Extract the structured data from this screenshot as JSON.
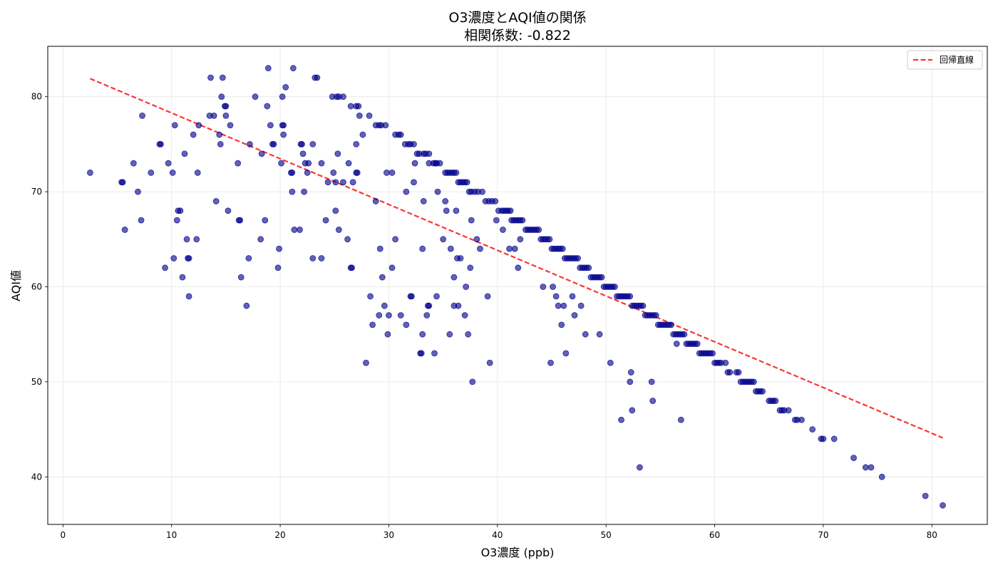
{
  "chart_data": {
    "type": "scatter",
    "title": "O3濃度とAQI値の関係",
    "subtitle": "相関係数: -0.822",
    "xlabel": "O3濃度 (ppb)",
    "ylabel": "AQI値",
    "xlim": [
      -1.4,
      85.1
    ],
    "ylim": [
      35,
      85.3
    ],
    "xticks": [
      0,
      10,
      20,
      30,
      40,
      50,
      60,
      70,
      80
    ],
    "yticks": [
      40,
      50,
      60,
      70,
      80
    ],
    "grid": true,
    "legend_position": "top-right",
    "point_color": "#00008b",
    "regression": {
      "name": "回帰直線",
      "color": "#ff3333",
      "style": "dashed",
      "x": [
        2.5,
        81.0
      ],
      "y": [
        81.9,
        44.1
      ]
    },
    "points": [
      [
        2.5,
        72
      ],
      [
        5.4,
        71
      ],
      [
        5.5,
        71
      ],
      [
        5.7,
        66
      ],
      [
        6.5,
        73
      ],
      [
        6.9,
        70
      ],
      [
        7.2,
        67
      ],
      [
        7.3,
        78
      ],
      [
        8.1,
        72
      ],
      [
        8.9,
        75
      ],
      [
        9.0,
        75
      ],
      [
        9.4,
        62
      ],
      [
        9.7,
        73
      ],
      [
        10.1,
        72
      ],
      [
        10.2,
        63
      ],
      [
        10.3,
        77
      ],
      [
        10.5,
        67
      ],
      [
        10.6,
        68
      ],
      [
        10.8,
        68
      ],
      [
        11.0,
        61
      ],
      [
        11.2,
        74
      ],
      [
        11.4,
        65
      ],
      [
        11.5,
        63
      ],
      [
        11.6,
        63
      ],
      [
        11.6,
        59
      ],
      [
        12.0,
        76
      ],
      [
        12.3,
        65
      ],
      [
        12.4,
        72
      ],
      [
        12.5,
        77
      ],
      [
        13.5,
        78
      ],
      [
        13.6,
        82
      ],
      [
        13.9,
        78
      ],
      [
        14.1,
        69
      ],
      [
        14.4,
        76
      ],
      [
        14.5,
        75
      ],
      [
        14.6,
        80
      ],
      [
        14.7,
        82
      ],
      [
        14.9,
        79
      ],
      [
        15.0,
        79
      ],
      [
        15.0,
        78
      ],
      [
        15.2,
        68
      ],
      [
        15.4,
        77
      ],
      [
        16.1,
        73
      ],
      [
        16.2,
        67
      ],
      [
        16.3,
        67
      ],
      [
        16.4,
        61
      ],
      [
        16.9,
        58
      ],
      [
        17.1,
        63
      ],
      [
        17.2,
        75
      ],
      [
        17.7,
        80
      ],
      [
        18.2,
        65
      ],
      [
        18.3,
        74
      ],
      [
        18.6,
        67
      ],
      [
        18.8,
        79
      ],
      [
        18.9,
        83
      ],
      [
        19.1,
        77
      ],
      [
        19.3,
        75
      ],
      [
        19.4,
        75
      ],
      [
        19.8,
        62
      ],
      [
        19.9,
        64
      ],
      [
        20.1,
        73
      ],
      [
        20.2,
        77
      ],
      [
        20.2,
        80
      ],
      [
        20.3,
        76
      ],
      [
        20.3,
        77
      ],
      [
        20.5,
        81
      ],
      [
        21.0,
        72
      ],
      [
        21.1,
        70
      ],
      [
        21.1,
        72
      ],
      [
        21.2,
        83
      ],
      [
        21.3,
        66
      ],
      [
        21.8,
        66
      ],
      [
        21.9,
        75
      ],
      [
        22.0,
        75
      ],
      [
        22.1,
        74
      ],
      [
        22.2,
        70
      ],
      [
        22.3,
        73
      ],
      [
        22.5,
        72
      ],
      [
        22.6,
        73
      ],
      [
        23.0,
        63
      ],
      [
        23.0,
        75
      ],
      [
        23.2,
        82
      ],
      [
        23.4,
        82
      ],
      [
        23.8,
        63
      ],
      [
        23.8,
        73
      ],
      [
        24.2,
        67
      ],
      [
        24.4,
        71
      ],
      [
        24.9,
        72
      ],
      [
        25.1,
        71
      ],
      [
        25.1,
        68
      ],
      [
        25.3,
        74
      ],
      [
        25.4,
        66
      ],
      [
        25.8,
        71
      ],
      [
        26.2,
        65
      ],
      [
        26.3,
        73
      ],
      [
        26.5,
        62
      ],
      [
        26.6,
        62
      ],
      [
        26.7,
        71
      ],
      [
        27.0,
        75
      ],
      [
        27.0,
        72
      ],
      [
        27.1,
        72
      ],
      [
        27.3,
        78
      ],
      [
        27.6,
        76
      ],
      [
        27.9,
        52
      ],
      [
        28.2,
        78
      ],
      [
        28.3,
        59
      ],
      [
        28.5,
        56
      ],
      [
        28.8,
        69
      ],
      [
        29.1,
        57
      ],
      [
        29.2,
        64
      ],
      [
        29.4,
        61
      ],
      [
        29.6,
        58
      ],
      [
        29.7,
        77
      ],
      [
        29.8,
        72
      ],
      [
        29.9,
        55
      ],
      [
        30.0,
        57
      ],
      [
        30.3,
        72
      ],
      [
        30.3,
        62
      ],
      [
        30.6,
        65
      ],
      [
        31.1,
        57
      ],
      [
        31.6,
        56
      ],
      [
        31.6,
        70
      ],
      [
        32.0,
        59
      ],
      [
        32.1,
        59
      ],
      [
        32.3,
        71
      ],
      [
        32.4,
        73
      ],
      [
        32.9,
        53
      ],
      [
        33.0,
        53
      ],
      [
        33.1,
        64
      ],
      [
        33.1,
        55
      ],
      [
        33.2,
        69
      ],
      [
        33.5,
        57
      ],
      [
        33.6,
        58
      ],
      [
        33.7,
        58
      ],
      [
        33.7,
        73
      ],
      [
        34.2,
        53
      ],
      [
        34.3,
        73
      ],
      [
        34.5,
        70
      ],
      [
        34.4,
        59
      ],
      [
        35.0,
        65
      ],
      [
        35.2,
        69
      ],
      [
        35.3,
        68
      ],
      [
        35.6,
        55
      ],
      [
        35.7,
        64
      ],
      [
        36.0,
        58
      ],
      [
        36.0,
        61
      ],
      [
        36.2,
        68
      ],
      [
        36.4,
        58
      ],
      [
        36.3,
        63
      ],
      [
        36.6,
        63
      ],
      [
        37.0,
        57
      ],
      [
        37.1,
        60
      ],
      [
        37.3,
        55
      ],
      [
        37.5,
        62
      ],
      [
        37.6,
        67
      ],
      [
        37.7,
        50
      ],
      [
        38.1,
        65
      ],
      [
        38.4,
        64
      ],
      [
        39.1,
        59
      ],
      [
        39.3,
        52
      ],
      [
        39.9,
        67
      ],
      [
        40.5,
        66
      ],
      [
        41.1,
        64
      ],
      [
        41.6,
        64
      ],
      [
        41.9,
        62
      ],
      [
        42.1,
        65
      ],
      [
        44.2,
        60
      ],
      [
        44.9,
        52
      ],
      [
        45.1,
        60
      ],
      [
        45.4,
        59
      ],
      [
        45.6,
        58
      ],
      [
        45.9,
        56
      ],
      [
        46.1,
        58
      ],
      [
        46.3,
        53
      ],
      [
        46.9,
        59
      ],
      [
        47.1,
        57
      ],
      [
        47.7,
        58
      ],
      [
        48.1,
        55
      ],
      [
        49.4,
        55
      ],
      [
        50.4,
        52
      ],
      [
        51.4,
        46
      ],
      [
        52.3,
        51
      ],
      [
        52.2,
        50
      ],
      [
        52.4,
        47
      ],
      [
        53.1,
        41
      ],
      [
        54.2,
        50
      ],
      [
        54.3,
        48
      ],
      [
        56.5,
        54
      ],
      [
        56.9,
        46
      ],
      [
        24.8,
        80
      ],
      [
        25.2,
        80
      ],
      [
        25.4,
        80
      ],
      [
        25.8,
        80
      ],
      [
        26.5,
        79
      ],
      [
        27.0,
        79
      ],
      [
        27.2,
        79
      ],
      [
        28.8,
        77
      ],
      [
        29.1,
        77
      ],
      [
        29.3,
        77
      ],
      [
        30.6,
        76
      ],
      [
        30.9,
        76
      ],
      [
        31.1,
        76
      ],
      [
        31.5,
        75
      ],
      [
        31.8,
        75
      ],
      [
        32.0,
        75
      ],
      [
        32.3,
        75
      ],
      [
        32.6,
        74
      ],
      [
        32.8,
        74
      ],
      [
        33.2,
        74
      ],
      [
        33.4,
        74
      ],
      [
        33.7,
        74
      ],
      [
        34.1,
        73
      ],
      [
        34.4,
        73
      ],
      [
        34.7,
        73
      ],
      [
        35.2,
        72
      ],
      [
        35.4,
        72
      ],
      [
        35.6,
        72
      ],
      [
        35.8,
        72
      ],
      [
        36.0,
        72
      ],
      [
        36.2,
        72
      ],
      [
        36.4,
        71
      ],
      [
        36.6,
        71
      ],
      [
        36.8,
        71
      ],
      [
        37.0,
        71
      ],
      [
        37.2,
        71
      ],
      [
        37.4,
        70
      ],
      [
        37.6,
        70
      ],
      [
        37.9,
        70
      ],
      [
        38.2,
        70
      ],
      [
        38.6,
        70
      ],
      [
        38.9,
        69
      ],
      [
        39.2,
        69
      ],
      [
        39.5,
        69
      ],
      [
        39.8,
        69
      ],
      [
        40.1,
        68
      ],
      [
        40.4,
        68
      ],
      [
        40.6,
        68
      ],
      [
        40.8,
        68
      ],
      [
        41.0,
        68
      ],
      [
        41.2,
        68
      ],
      [
        41.3,
        67
      ],
      [
        41.5,
        67
      ],
      [
        41.7,
        67
      ],
      [
        41.9,
        67
      ],
      [
        42.1,
        67
      ],
      [
        42.3,
        67
      ],
      [
        42.6,
        66
      ],
      [
        42.8,
        66
      ],
      [
        43.0,
        66
      ],
      [
        43.2,
        66
      ],
      [
        43.4,
        66
      ],
      [
        43.6,
        66
      ],
      [
        43.8,
        66
      ],
      [
        44.0,
        65
      ],
      [
        44.2,
        65
      ],
      [
        44.4,
        65
      ],
      [
        44.6,
        65
      ],
      [
        44.8,
        65
      ],
      [
        45.0,
        64
      ],
      [
        45.2,
        64
      ],
      [
        45.4,
        64
      ],
      [
        45.6,
        64
      ],
      [
        45.8,
        64
      ],
      [
        46.0,
        64
      ],
      [
        46.2,
        63
      ],
      [
        46.4,
        63
      ],
      [
        46.6,
        63
      ],
      [
        46.8,
        63
      ],
      [
        47.0,
        63
      ],
      [
        47.2,
        63
      ],
      [
        47.4,
        63
      ],
      [
        47.6,
        62
      ],
      [
        47.8,
        62
      ],
      [
        48.0,
        62
      ],
      [
        48.2,
        62
      ],
      [
        48.4,
        62
      ],
      [
        48.6,
        61
      ],
      [
        48.8,
        61
      ],
      [
        49.0,
        61
      ],
      [
        49.2,
        61
      ],
      [
        49.4,
        61
      ],
      [
        49.6,
        61
      ],
      [
        49.8,
        60
      ],
      [
        50.0,
        60
      ],
      [
        50.2,
        60
      ],
      [
        50.4,
        60
      ],
      [
        50.6,
        60
      ],
      [
        50.8,
        60
      ],
      [
        51.0,
        59
      ],
      [
        51.2,
        59
      ],
      [
        51.4,
        59
      ],
      [
        51.6,
        59
      ],
      [
        51.8,
        59
      ],
      [
        52.0,
        59
      ],
      [
        52.2,
        59
      ],
      [
        52.4,
        58
      ],
      [
        52.6,
        58
      ],
      [
        52.8,
        58
      ],
      [
        53.0,
        58
      ],
      [
        53.2,
        58
      ],
      [
        53.4,
        58
      ],
      [
        53.6,
        57
      ],
      [
        53.8,
        57
      ],
      [
        54.0,
        57
      ],
      [
        54.2,
        57
      ],
      [
        54.4,
        57
      ],
      [
        54.6,
        57
      ],
      [
        54.8,
        56
      ],
      [
        55.0,
        56
      ],
      [
        55.2,
        56
      ],
      [
        55.4,
        56
      ],
      [
        55.6,
        56
      ],
      [
        55.8,
        56
      ],
      [
        56.0,
        56
      ],
      [
        56.2,
        55
      ],
      [
        56.4,
        55
      ],
      [
        56.6,
        55
      ],
      [
        56.8,
        55
      ],
      [
        57.0,
        55
      ],
      [
        57.2,
        55
      ],
      [
        57.4,
        54
      ],
      [
        57.6,
        54
      ],
      [
        57.8,
        54
      ],
      [
        58.0,
        54
      ],
      [
        58.2,
        54
      ],
      [
        58.4,
        54
      ],
      [
        58.6,
        53
      ],
      [
        58.8,
        53
      ],
      [
        59.0,
        53
      ],
      [
        59.2,
        53
      ],
      [
        59.4,
        53
      ],
      [
        59.6,
        53
      ],
      [
        59.8,
        53
      ],
      [
        60.0,
        52
      ],
      [
        60.2,
        52
      ],
      [
        60.4,
        52
      ],
      [
        60.6,
        52
      ],
      [
        61.0,
        52
      ],
      [
        61.2,
        51
      ],
      [
        61.4,
        51
      ],
      [
        62.0,
        51
      ],
      [
        62.2,
        51
      ],
      [
        62.4,
        50
      ],
      [
        62.6,
        50
      ],
      [
        62.8,
        50
      ],
      [
        63.0,
        50
      ],
      [
        63.2,
        50
      ],
      [
        63.4,
        50
      ],
      [
        63.6,
        50
      ],
      [
        63.8,
        49
      ],
      [
        64.0,
        49
      ],
      [
        64.2,
        49
      ],
      [
        64.4,
        49
      ],
      [
        65.0,
        48
      ],
      [
        65.2,
        48
      ],
      [
        65.4,
        48
      ],
      [
        65.6,
        48
      ],
      [
        66.0,
        47
      ],
      [
        66.2,
        47
      ],
      [
        66.4,
        47
      ],
      [
        66.8,
        47
      ],
      [
        67.4,
        46
      ],
      [
        67.6,
        46
      ],
      [
        68.0,
        46
      ],
      [
        69.0,
        45
      ],
      [
        69.8,
        44
      ],
      [
        70.0,
        44
      ],
      [
        71.0,
        44
      ],
      [
        72.8,
        42
      ],
      [
        73.9,
        41
      ],
      [
        74.4,
        41
      ],
      [
        75.4,
        40
      ],
      [
        79.4,
        38
      ],
      [
        81.0,
        37
      ]
    ]
  }
}
